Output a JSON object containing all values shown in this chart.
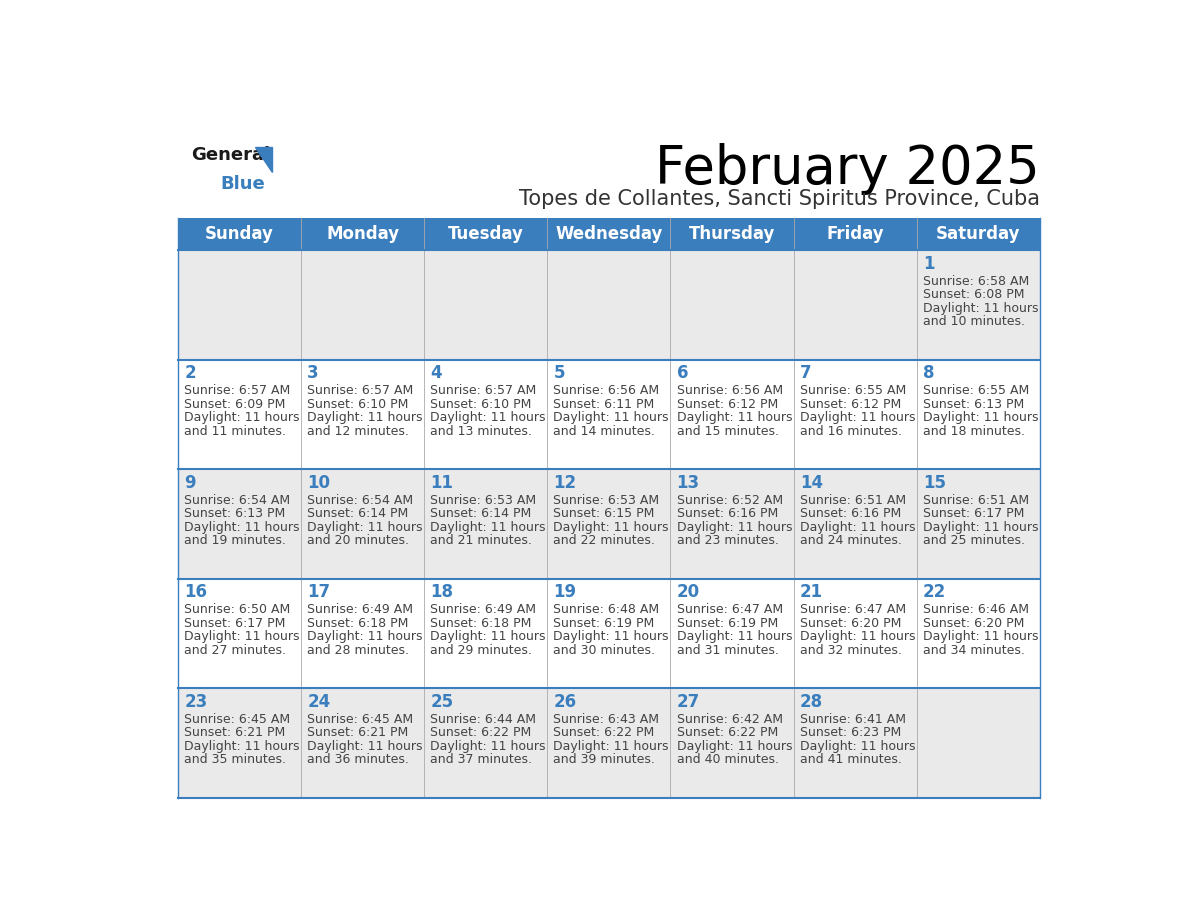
{
  "title": "February 2025",
  "subtitle": "Topes de Collantes, Sancti Spiritus Province, Cuba",
  "header_bg": "#3A7EBD",
  "header_text_color": "#FFFFFF",
  "cell_bg_odd": "#EAEAEA",
  "cell_bg_even": "#FFFFFF",
  "day_number_color": "#3A7EBD",
  "info_text_color": "#444444",
  "border_color": "#3A7EBD",
  "grid_line_color": "#AAAAAA",
  "days_of_week": [
    "Sunday",
    "Monday",
    "Tuesday",
    "Wednesday",
    "Thursday",
    "Friday",
    "Saturday"
  ],
  "calendar_data": [
    [
      null,
      null,
      null,
      null,
      null,
      null,
      {
        "day": 1,
        "sunrise": "6:58 AM",
        "sunset": "6:08 PM",
        "daylight_h": "11 hours",
        "daylight_m": "10 minutes"
      }
    ],
    [
      {
        "day": 2,
        "sunrise": "6:57 AM",
        "sunset": "6:09 PM",
        "daylight_h": "11 hours",
        "daylight_m": "11 minutes"
      },
      {
        "day": 3,
        "sunrise": "6:57 AM",
        "sunset": "6:10 PM",
        "daylight_h": "11 hours",
        "daylight_m": "12 minutes"
      },
      {
        "day": 4,
        "sunrise": "6:57 AM",
        "sunset": "6:10 PM",
        "daylight_h": "11 hours",
        "daylight_m": "13 minutes"
      },
      {
        "day": 5,
        "sunrise": "6:56 AM",
        "sunset": "6:11 PM",
        "daylight_h": "11 hours",
        "daylight_m": "14 minutes"
      },
      {
        "day": 6,
        "sunrise": "6:56 AM",
        "sunset": "6:12 PM",
        "daylight_h": "11 hours",
        "daylight_m": "15 minutes"
      },
      {
        "day": 7,
        "sunrise": "6:55 AM",
        "sunset": "6:12 PM",
        "daylight_h": "11 hours",
        "daylight_m": "16 minutes"
      },
      {
        "day": 8,
        "sunrise": "6:55 AM",
        "sunset": "6:13 PM",
        "daylight_h": "11 hours",
        "daylight_m": "18 minutes"
      }
    ],
    [
      {
        "day": 9,
        "sunrise": "6:54 AM",
        "sunset": "6:13 PM",
        "daylight_h": "11 hours",
        "daylight_m": "19 minutes"
      },
      {
        "day": 10,
        "sunrise": "6:54 AM",
        "sunset": "6:14 PM",
        "daylight_h": "11 hours",
        "daylight_m": "20 minutes"
      },
      {
        "day": 11,
        "sunrise": "6:53 AM",
        "sunset": "6:14 PM",
        "daylight_h": "11 hours",
        "daylight_m": "21 minutes"
      },
      {
        "day": 12,
        "sunrise": "6:53 AM",
        "sunset": "6:15 PM",
        "daylight_h": "11 hours",
        "daylight_m": "22 minutes"
      },
      {
        "day": 13,
        "sunrise": "6:52 AM",
        "sunset": "6:16 PM",
        "daylight_h": "11 hours",
        "daylight_m": "23 minutes"
      },
      {
        "day": 14,
        "sunrise": "6:51 AM",
        "sunset": "6:16 PM",
        "daylight_h": "11 hours",
        "daylight_m": "24 minutes"
      },
      {
        "day": 15,
        "sunrise": "6:51 AM",
        "sunset": "6:17 PM",
        "daylight_h": "11 hours",
        "daylight_m": "25 minutes"
      }
    ],
    [
      {
        "day": 16,
        "sunrise": "6:50 AM",
        "sunset": "6:17 PM",
        "daylight_h": "11 hours",
        "daylight_m": "27 minutes"
      },
      {
        "day": 17,
        "sunrise": "6:49 AM",
        "sunset": "6:18 PM",
        "daylight_h": "11 hours",
        "daylight_m": "28 minutes"
      },
      {
        "day": 18,
        "sunrise": "6:49 AM",
        "sunset": "6:18 PM",
        "daylight_h": "11 hours",
        "daylight_m": "29 minutes"
      },
      {
        "day": 19,
        "sunrise": "6:48 AM",
        "sunset": "6:19 PM",
        "daylight_h": "11 hours",
        "daylight_m": "30 minutes"
      },
      {
        "day": 20,
        "sunrise": "6:47 AM",
        "sunset": "6:19 PM",
        "daylight_h": "11 hours",
        "daylight_m": "31 minutes"
      },
      {
        "day": 21,
        "sunrise": "6:47 AM",
        "sunset": "6:20 PM",
        "daylight_h": "11 hours",
        "daylight_m": "32 minutes"
      },
      {
        "day": 22,
        "sunrise": "6:46 AM",
        "sunset": "6:20 PM",
        "daylight_h": "11 hours",
        "daylight_m": "34 minutes"
      }
    ],
    [
      {
        "day": 23,
        "sunrise": "6:45 AM",
        "sunset": "6:21 PM",
        "daylight_h": "11 hours",
        "daylight_m": "35 minutes"
      },
      {
        "day": 24,
        "sunrise": "6:45 AM",
        "sunset": "6:21 PM",
        "daylight_h": "11 hours",
        "daylight_m": "36 minutes"
      },
      {
        "day": 25,
        "sunrise": "6:44 AM",
        "sunset": "6:22 PM",
        "daylight_h": "11 hours",
        "daylight_m": "37 minutes"
      },
      {
        "day": 26,
        "sunrise": "6:43 AM",
        "sunset": "6:22 PM",
        "daylight_h": "11 hours",
        "daylight_m": "39 minutes"
      },
      {
        "day": 27,
        "sunrise": "6:42 AM",
        "sunset": "6:22 PM",
        "daylight_h": "11 hours",
        "daylight_m": "40 minutes"
      },
      {
        "day": 28,
        "sunrise": "6:41 AM",
        "sunset": "6:23 PM",
        "daylight_h": "11 hours",
        "daylight_m": "41 minutes"
      },
      null
    ]
  ],
  "logo_general_color": "#1a1a1a",
  "logo_blue_color": "#3A7EBD",
  "title_fontsize": 38,
  "subtitle_fontsize": 15,
  "header_fontsize": 12,
  "day_num_fontsize": 12,
  "info_fontsize": 9
}
